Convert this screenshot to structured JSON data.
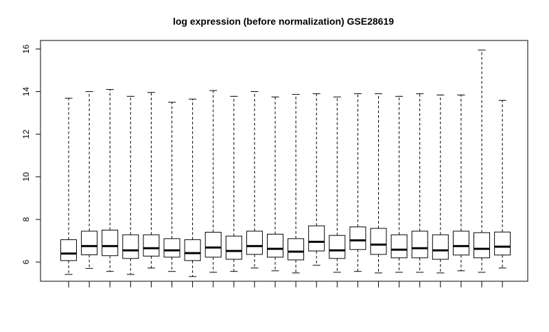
{
  "chart_data": {
    "type": "box",
    "title": "log expression (before normalization) GSE28619",
    "xlabel": "",
    "ylabel": "",
    "ylim": [
      5.1,
      16.4
    ],
    "y_ticks": [
      6,
      8,
      10,
      12,
      14,
      16
    ],
    "grid": false,
    "legend": "none",
    "boxes": [
      {
        "min": 5.42,
        "q1": 6.07,
        "median": 6.4,
        "q3": 7.05,
        "max": 13.69
      },
      {
        "min": 5.7,
        "q1": 6.34,
        "median": 6.75,
        "q3": 7.45,
        "max": 14.0
      },
      {
        "min": 5.56,
        "q1": 6.3,
        "median": 6.75,
        "q3": 7.5,
        "max": 14.1
      },
      {
        "min": 5.42,
        "q1": 6.17,
        "median": 6.55,
        "q3": 7.28,
        "max": 13.78
      },
      {
        "min": 5.72,
        "q1": 6.28,
        "median": 6.65,
        "q3": 7.28,
        "max": 13.96
      },
      {
        "min": 5.56,
        "q1": 6.23,
        "median": 6.55,
        "q3": 7.1,
        "max": 13.5
      },
      {
        "min": 5.32,
        "q1": 6.07,
        "median": 6.42,
        "q3": 7.05,
        "max": 13.65
      },
      {
        "min": 5.52,
        "q1": 6.23,
        "median": 6.68,
        "q3": 7.4,
        "max": 14.05
      },
      {
        "min": 5.56,
        "q1": 6.13,
        "median": 6.52,
        "q3": 7.22,
        "max": 13.78
      },
      {
        "min": 5.72,
        "q1": 6.36,
        "median": 6.75,
        "q3": 7.45,
        "max": 14.0
      },
      {
        "min": 5.59,
        "q1": 6.23,
        "median": 6.62,
        "q3": 7.31,
        "max": 13.75
      },
      {
        "min": 5.49,
        "q1": 6.1,
        "median": 6.49,
        "q3": 7.1,
        "max": 13.87
      },
      {
        "min": 5.85,
        "q1": 6.52,
        "median": 6.95,
        "q3": 7.7,
        "max": 13.9
      },
      {
        "min": 5.52,
        "q1": 6.17,
        "median": 6.55,
        "q3": 7.25,
        "max": 13.75
      },
      {
        "min": 5.56,
        "q1": 6.59,
        "median": 7.02,
        "q3": 7.65,
        "max": 13.9
      },
      {
        "min": 5.49,
        "q1": 6.36,
        "median": 6.82,
        "q3": 7.58,
        "max": 13.9
      },
      {
        "min": 5.52,
        "q1": 6.2,
        "median": 6.58,
        "q3": 7.28,
        "max": 13.78
      },
      {
        "min": 5.52,
        "q1": 6.2,
        "median": 6.65,
        "q3": 7.45,
        "max": 13.9
      },
      {
        "min": 5.49,
        "q1": 6.13,
        "median": 6.55,
        "q3": 7.28,
        "max": 13.84
      },
      {
        "min": 5.59,
        "q1": 6.33,
        "median": 6.75,
        "q3": 7.45,
        "max": 13.84
      },
      {
        "min": 5.52,
        "q1": 6.2,
        "median": 6.62,
        "q3": 7.38,
        "max": 15.95
      },
      {
        "min": 5.72,
        "q1": 6.33,
        "median": 6.72,
        "q3": 7.41,
        "max": 13.59
      }
    ]
  }
}
